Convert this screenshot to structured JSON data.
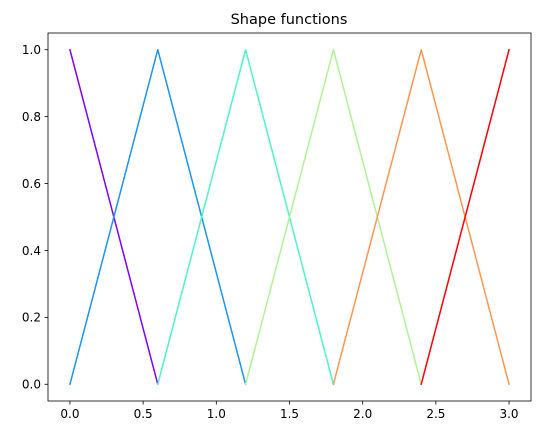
{
  "chart_data": {
    "type": "line",
    "title": "Shape functions",
    "xlabel": "",
    "ylabel": "",
    "xlim": [
      -0.15,
      3.15
    ],
    "ylim": [
      -0.05,
      1.05
    ],
    "grid": false,
    "legend": "none",
    "x_ticks": [
      0.0,
      0.5,
      1.0,
      1.5,
      2.0,
      2.5,
      3.0
    ],
    "x_tick_labels": [
      "0.0",
      "0.5",
      "1.0",
      "1.5",
      "2.0",
      "2.5",
      "3.0"
    ],
    "y_ticks": [
      0.0,
      0.2,
      0.4,
      0.6,
      0.8,
      1.0
    ],
    "y_tick_labels": [
      "0.0",
      "0.2",
      "0.4",
      "0.6",
      "0.8",
      "1.0"
    ],
    "series": [
      {
        "color": "#8000ff",
        "x": [
          0.0,
          0.6
        ],
        "y": [
          1.0,
          0.0
        ]
      },
      {
        "color": "#1996f3",
        "x": [
          0.0,
          0.6,
          1.2
        ],
        "y": [
          0.0,
          1.0,
          0.0
        ]
      },
      {
        "color": "#4df3ce",
        "x": [
          0.6,
          1.2,
          1.8
        ],
        "y": [
          0.0,
          1.0,
          0.0
        ]
      },
      {
        "color": "#b2f396",
        "x": [
          1.2,
          1.8,
          2.4
        ],
        "y": [
          0.0,
          1.0,
          0.0
        ]
      },
      {
        "color": "#ff964f",
        "x": [
          1.8,
          2.4,
          3.0
        ],
        "y": [
          0.0,
          1.0,
          0.0
        ]
      },
      {
        "color": "#ff0000",
        "x": [
          2.4,
          3.0
        ],
        "y": [
          0.0,
          1.0
        ]
      }
    ]
  }
}
